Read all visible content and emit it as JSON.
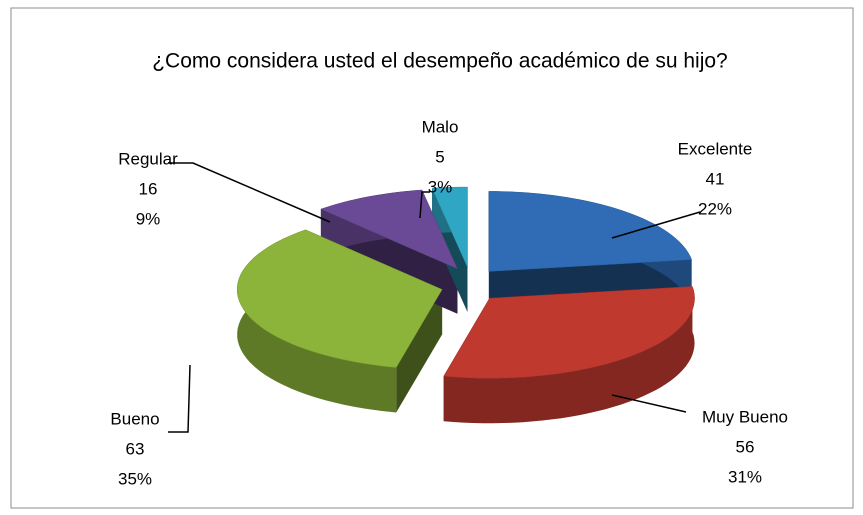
{
  "chart_data": {
    "type": "pie",
    "title": "¿Como considera usted el desempeño académico de su hijo?",
    "categories": [
      "Excelente",
      "Muy Bueno",
      "Bueno",
      "Regular",
      "Malo"
    ],
    "values": [
      41,
      56,
      63,
      16,
      5
    ],
    "percent_labels": [
      "22%",
      "31%",
      "35%",
      "9%",
      "3%"
    ],
    "colors": [
      "#2f6cb5",
      "#c0392f",
      "#8cb43a",
      "#6a4a96",
      "#2fa6c4"
    ]
  }
}
